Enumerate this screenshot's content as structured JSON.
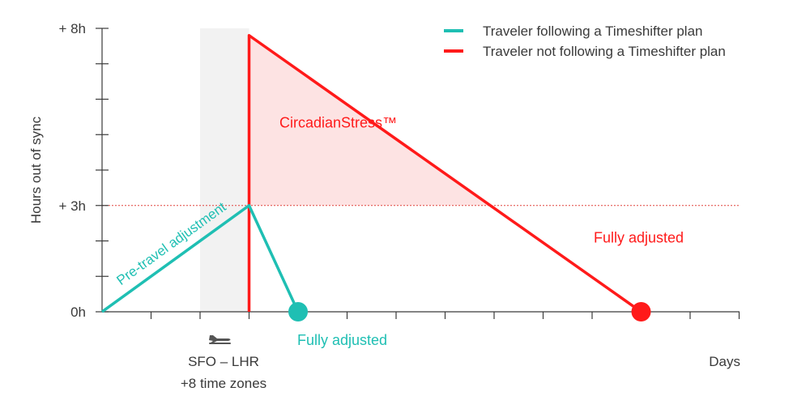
{
  "chart_data": {
    "type": "line",
    "xlabel": "Days",
    "ylabel": "Hours out of sync",
    "ylim": [
      0,
      8
    ],
    "y_ticks": [
      {
        "value": 0,
        "label": "0h"
      },
      {
        "value": 3,
        "label": "+ 3h"
      },
      {
        "value": 8,
        "label": "+ 8h"
      }
    ],
    "y_minor_tick_step": 1,
    "x_tick_count": 14,
    "threshold_line": 3,
    "flight": {
      "label_route": "SFO – LHR",
      "label_zones": "+8 time zones",
      "icon": "airplane-icon"
    },
    "series": [
      {
        "name": "Traveler following a Timeshifter plan",
        "color": "#1fbfb3",
        "segment_label": "Pre-travel adjustment",
        "end_label": "Fully adjusted",
        "points": [
          [
            0,
            0
          ],
          [
            3,
            3
          ],
          [
            4,
            0
          ]
        ]
      },
      {
        "name": "Traveler not following a Timeshifter plan",
        "color": "#ff1a1a",
        "end_label": "Fully adjusted",
        "points": [
          [
            3,
            0
          ],
          [
            3,
            7.8
          ],
          [
            11,
            0
          ]
        ]
      }
    ],
    "shaded_area_label": "CircadianStress™"
  }
}
